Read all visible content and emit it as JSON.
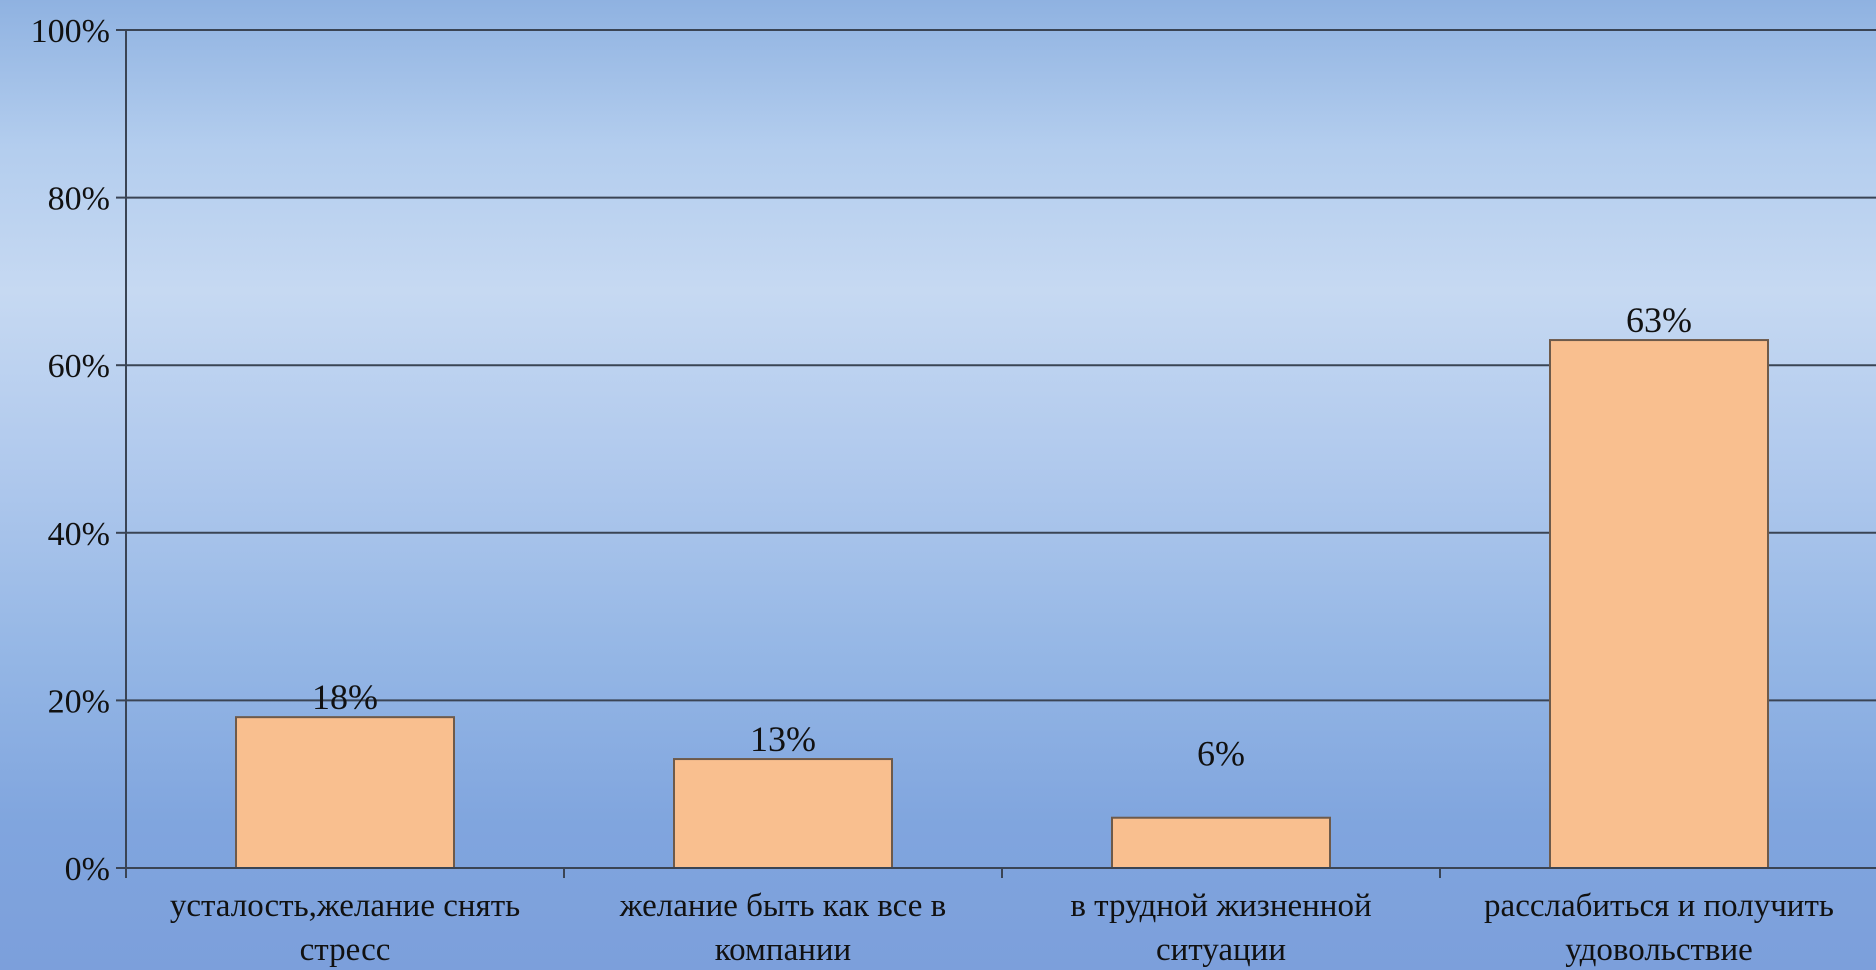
{
  "chart_data": {
    "type": "bar",
    "categories": [
      [
        "усталость,желание снять",
        "стресс"
      ],
      [
        "желание быть как все в",
        "компании"
      ],
      [
        "в трудной жизненной",
        "ситуации"
      ],
      [
        "расслабиться и получить",
        "удовольствие"
      ]
    ],
    "values": [
      18,
      13,
      6,
      63
    ],
    "data_labels": [
      "18%",
      "13%",
      "6%",
      "63%"
    ],
    "y_ticks": [
      0,
      20,
      40,
      60,
      80,
      100
    ],
    "y_tick_labels": [
      "0%",
      "20%",
      "40%",
      "60%",
      "80%",
      "100%"
    ],
    "ylim": [
      0,
      100
    ],
    "grid": true,
    "legend": "none",
    "colors": {
      "bar_fill": "#f9bf8f",
      "bar_stroke": "#6e5a4a",
      "gridline": "#3a4454",
      "axis": "#3a4454"
    }
  }
}
